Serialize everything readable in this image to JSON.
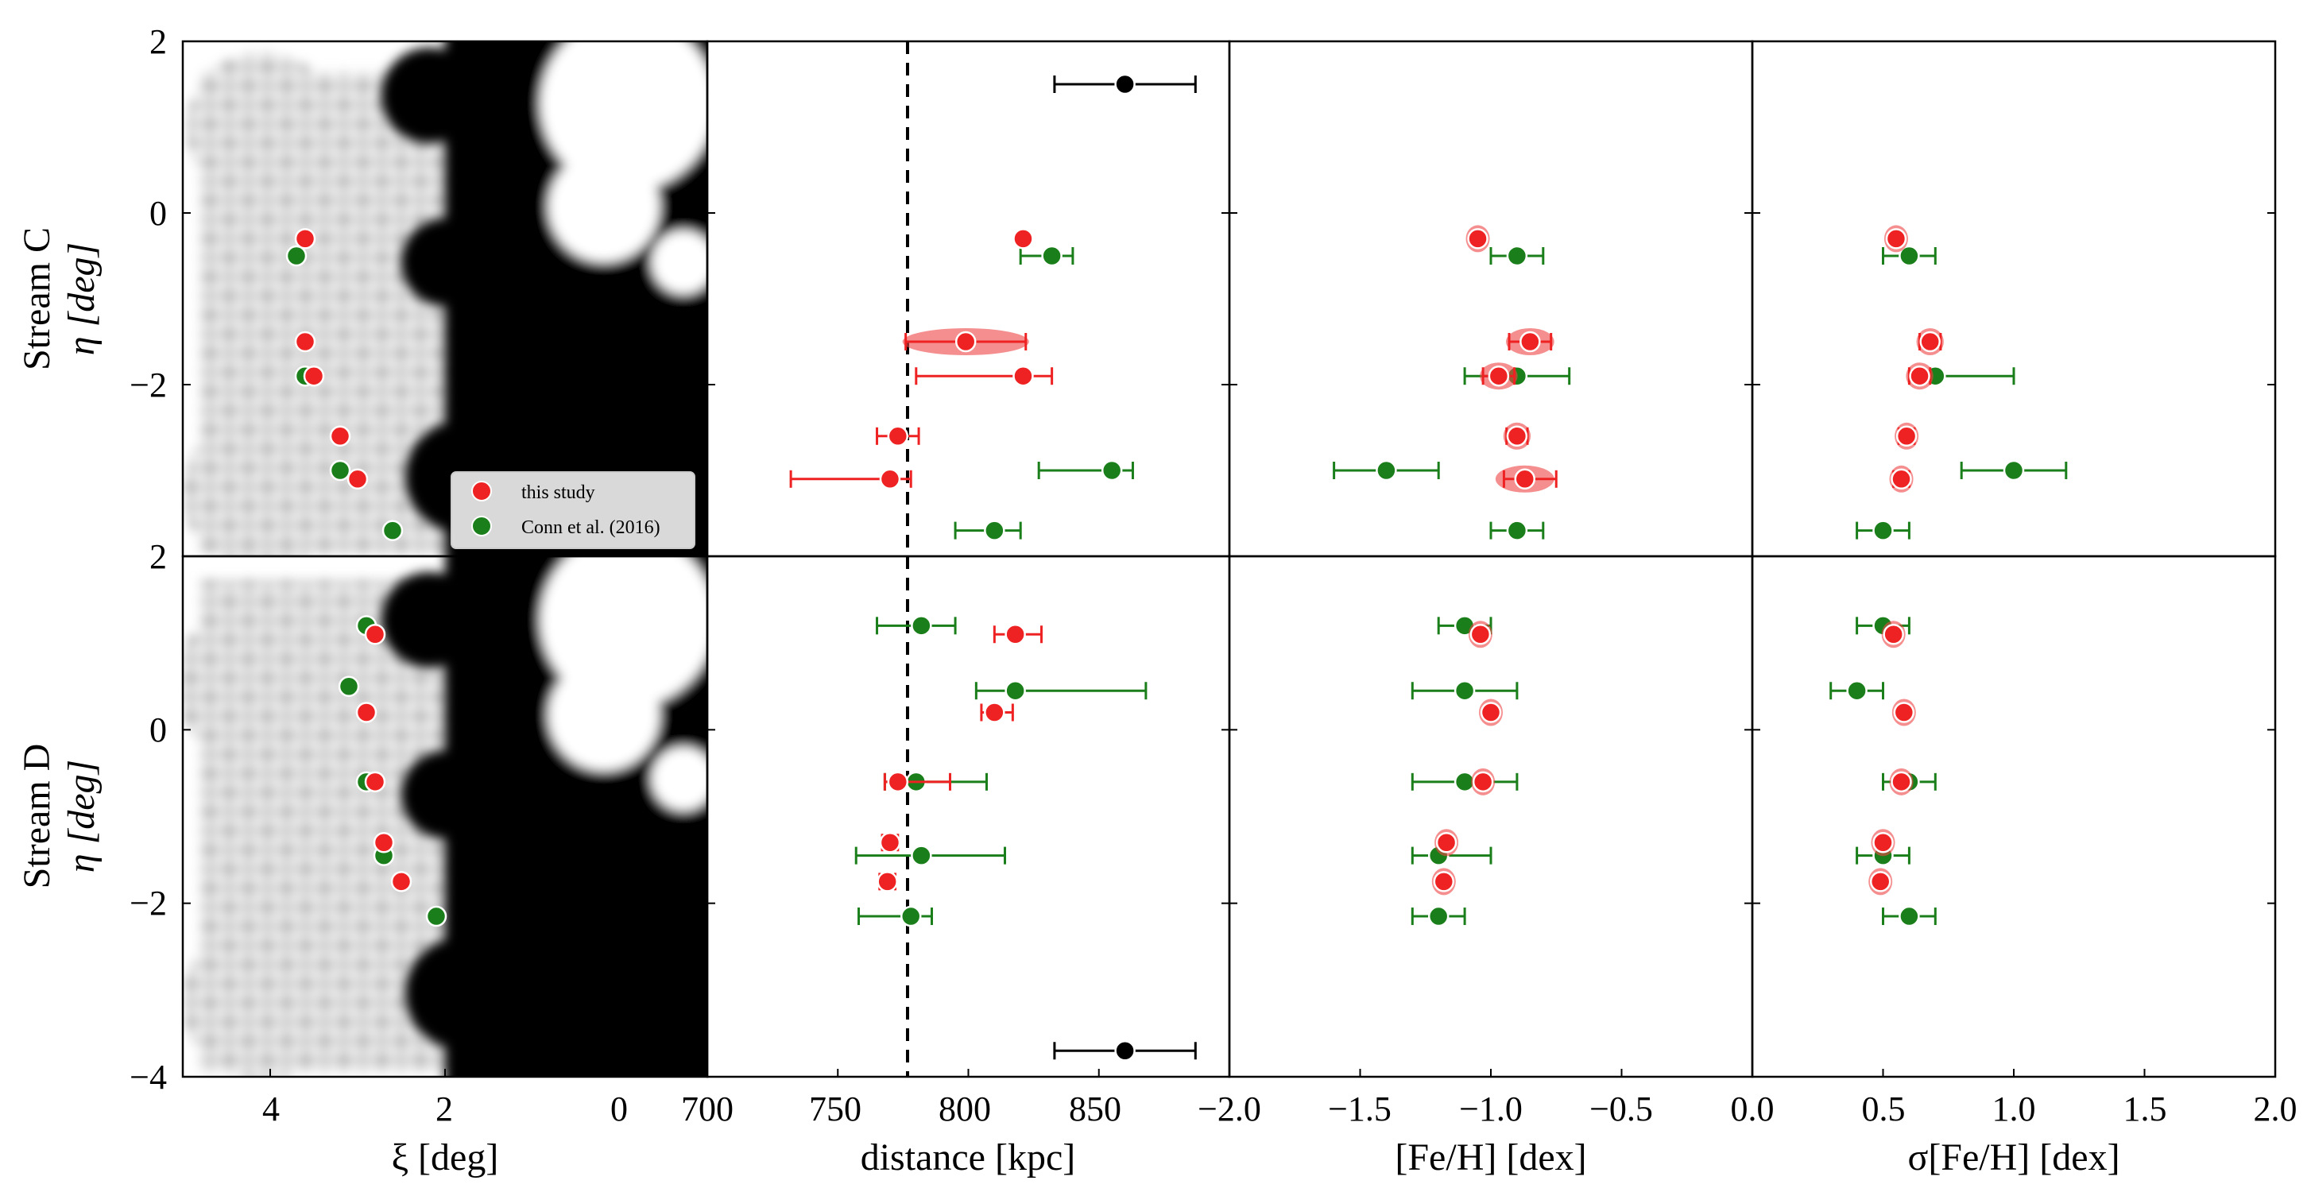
{
  "colors": {
    "this_study": "#ee2222",
    "conn": "#1a7f1a",
    "ref": "#000000",
    "violin": "#ee4444"
  },
  "legend": {
    "entries": [
      {
        "label": "this study",
        "color": "#ee2222"
      },
      {
        "label": "Conn et al. (2016)",
        "color": "#1a7f1a"
      }
    ]
  },
  "row_labels": [
    {
      "line1": "Stream C",
      "line2": "η [deg]"
    },
    {
      "line1": "Stream D",
      "line2": "η [deg]"
    }
  ],
  "chart_data": [
    {
      "type": "scatter",
      "panel": "Stream C map",
      "xlabel": "ξ [deg]",
      "xlim": [
        5,
        -1
      ],
      "xticks": [
        "4",
        "2",
        "0"
      ],
      "ylim": [
        -4,
        2
      ],
      "yticks": [
        "2",
        "0",
        "−2"
      ],
      "background": "density map (greyscale)",
      "this_study": {
        "x": [
          3.6,
          3.6,
          3.5,
          3.2,
          3.0
        ],
        "y": [
          -0.3,
          -1.5,
          -1.9,
          -2.6,
          -3.1
        ]
      },
      "conn": {
        "x": [
          3.7,
          3.6,
          3.2,
          2.6
        ],
        "y": [
          -0.5,
          -1.9,
          -3.0,
          -3.7
        ]
      }
    },
    {
      "type": "scatter",
      "panel": "Stream C distance",
      "xlim": [
        700,
        900
      ],
      "ylim": [
        -4,
        2
      ],
      "reference_line_x": 776,
      "this_study": {
        "y": [
          -0.3,
          -1.5,
          -1.9,
          -2.6,
          -3.1
        ],
        "x": [
          821,
          799,
          821,
          773,
          770
        ],
        "xerr_lo": [
          0,
          23,
          41,
          8,
          38
        ],
        "xerr_hi": [
          0,
          23,
          11,
          8,
          8
        ],
        "violin": [
          false,
          true,
          false,
          false,
          false
        ]
      },
      "conn": {
        "y": [
          -0.5,
          -3.0,
          -3.7
        ],
        "x": [
          832,
          855,
          810
        ],
        "xerr_lo": [
          12,
          28,
          15
        ],
        "xerr_hi": [
          8,
          8,
          10
        ]
      },
      "ref": {
        "x": [
          860
        ],
        "y": [
          1.5
        ],
        "xerr_lo": [
          27
        ],
        "xerr_hi": [
          27
        ]
      }
    },
    {
      "type": "scatter",
      "panel": "Stream C [Fe/H]",
      "xlim": [
        -2.0,
        0.0
      ],
      "ylim": [
        -4,
        2
      ],
      "this_study": {
        "y": [
          -0.3,
          -1.5,
          -1.9,
          -2.6,
          -3.1
        ],
        "x": [
          -1.05,
          -0.85,
          -0.97,
          -0.9,
          -0.87
        ],
        "xerr_lo": [
          0,
          0.08,
          0.06,
          0.04,
          0.08
        ],
        "xerr_hi": [
          0,
          0.08,
          0.06,
          0.04,
          0.12
        ],
        "violin": [
          true,
          true,
          true,
          true,
          true
        ]
      },
      "conn": {
        "y": [
          -0.5,
          -1.9,
          -3.0,
          -3.7
        ],
        "x": [
          -0.9,
          -0.9,
          -1.4,
          -0.9
        ],
        "xerr_lo": [
          0.1,
          0.2,
          0.2,
          0.1
        ],
        "xerr_hi": [
          0.1,
          0.2,
          0.2,
          0.1
        ]
      }
    },
    {
      "type": "scatter",
      "panel": "Stream C σ[Fe/H]",
      "xlim": [
        0.0,
        2.0
      ],
      "ylim": [
        -4,
        2
      ],
      "this_study": {
        "y": [
          -0.3,
          -1.5,
          -1.9,
          -2.6,
          -3.1
        ],
        "x": [
          0.55,
          0.68,
          0.64,
          0.59,
          0.57
        ],
        "xerr_lo": [
          0,
          0.04,
          0.04,
          0.03,
          0.03
        ],
        "xerr_hi": [
          0,
          0.04,
          0.04,
          0.03,
          0.03
        ],
        "violin": [
          true,
          true,
          true,
          true,
          true
        ]
      },
      "conn": {
        "y": [
          -0.5,
          -1.9,
          -3.0,
          -3.7
        ],
        "x": [
          0.6,
          0.7,
          1.0,
          0.5
        ],
        "xerr_lo": [
          0.1,
          0.05,
          0.2,
          0.1
        ],
        "xerr_hi": [
          0.1,
          0.3,
          0.2,
          0.1
        ]
      }
    },
    {
      "type": "scatter",
      "panel": "Stream D map",
      "xlabel": "ξ [deg]",
      "xlim": [
        5,
        -1
      ],
      "xticks": [
        "4",
        "2",
        "0"
      ],
      "ylim": [
        -4,
        2
      ],
      "yticks": [
        "2",
        "0",
        "−2",
        "−4"
      ],
      "background": "density map (greyscale)",
      "this_study": {
        "x": [
          2.8,
          2.9,
          2.8,
          2.7,
          2.5
        ],
        "y": [
          1.1,
          0.2,
          -0.6,
          -1.3,
          -1.75
        ]
      },
      "conn": {
        "x": [
          2.9,
          3.1,
          2.9,
          2.7,
          2.1
        ],
        "y": [
          1.2,
          0.5,
          -0.6,
          -1.45,
          -2.15
        ]
      }
    },
    {
      "type": "scatter",
      "panel": "Stream D distance",
      "xlabel": "distance [kpc]",
      "xlim": [
        700,
        900
      ],
      "xticks": [
        "700",
        "750",
        "800",
        "850"
      ],
      "ylim": [
        -4,
        2
      ],
      "reference_line_x": 776,
      "this_study": {
        "y": [
          1.1,
          0.2,
          -0.6,
          -1.3,
          -1.75
        ],
        "x": [
          818,
          810,
          773,
          770,
          769
        ],
        "xerr_lo": [
          8,
          5,
          5,
          3,
          3
        ],
        "xerr_hi": [
          10,
          7,
          20,
          3,
          3
        ],
        "violin": [
          false,
          false,
          false,
          false,
          false
        ]
      },
      "conn": {
        "y": [
          1.2,
          0.45,
          -0.6,
          -1.45,
          -2.15
        ],
        "x": [
          782,
          818,
          780,
          782,
          778
        ],
        "xerr_lo": [
          17,
          15,
          12,
          25,
          20
        ],
        "xerr_hi": [
          13,
          50,
          27,
          32,
          8
        ]
      },
      "ref": {
        "x": [
          860
        ],
        "y": [
          -3.7
        ],
        "xerr_lo": [
          27
        ],
        "xerr_hi": [
          27
        ]
      }
    },
    {
      "type": "scatter",
      "panel": "Stream D [Fe/H]",
      "xlabel": "[Fe/H] [dex]",
      "xlim": [
        -2.0,
        0.0
      ],
      "xticks": [
        "−2.0",
        "−1.5",
        "−1.0",
        "−0.5"
      ],
      "ylim": [
        -4,
        2
      ],
      "this_study": {
        "y": [
          1.1,
          0.2,
          -0.6,
          -1.3,
          -1.75
        ],
        "x": [
          -1.04,
          -1.0,
          -1.03,
          -1.17,
          -1.18
        ],
        "xerr_lo": [
          0,
          0,
          0,
          0,
          0
        ],
        "xerr_hi": [
          0,
          0,
          0,
          0,
          0
        ],
        "violin": [
          true,
          true,
          true,
          true,
          true
        ]
      },
      "conn": {
        "y": [
          1.2,
          0.45,
          -0.6,
          -1.45,
          -2.15
        ],
        "x": [
          -1.1,
          -1.1,
          -1.1,
          -1.2,
          -1.2
        ],
        "xerr_lo": [
          0.1,
          0.2,
          0.2,
          0.1,
          0.1
        ],
        "xerr_hi": [
          0.1,
          0.2,
          0.2,
          0.2,
          0.1
        ]
      }
    },
    {
      "type": "scatter",
      "panel": "Stream D σ[Fe/H]",
      "xlabel": "σ[Fe/H] [dex]",
      "xlim": [
        0.0,
        2.0
      ],
      "xticks": [
        "0.0",
        "0.5",
        "1.0",
        "1.5",
        "2.0"
      ],
      "ylim": [
        -4,
        2
      ],
      "this_study": {
        "y": [
          1.1,
          0.2,
          -0.6,
          -1.3,
          -1.75
        ],
        "x": [
          0.54,
          0.58,
          0.57,
          0.5,
          0.49
        ],
        "xerr_lo": [
          0,
          0,
          0,
          0,
          0
        ],
        "xerr_hi": [
          0,
          0,
          0,
          0,
          0
        ],
        "violin": [
          true,
          true,
          true,
          true,
          true
        ]
      },
      "conn": {
        "y": [
          1.2,
          0.45,
          -0.6,
          -1.45,
          -2.15
        ],
        "x": [
          0.5,
          0.4,
          0.6,
          0.5,
          0.6
        ],
        "xerr_lo": [
          0.1,
          0.1,
          0.1,
          0.1,
          0.1
        ],
        "xerr_hi": [
          0.1,
          0.1,
          0.1,
          0.1,
          0.1
        ]
      }
    }
  ],
  "shared_xticks": {
    "dist_first": "700",
    "feh_first": "−2.0"
  }
}
